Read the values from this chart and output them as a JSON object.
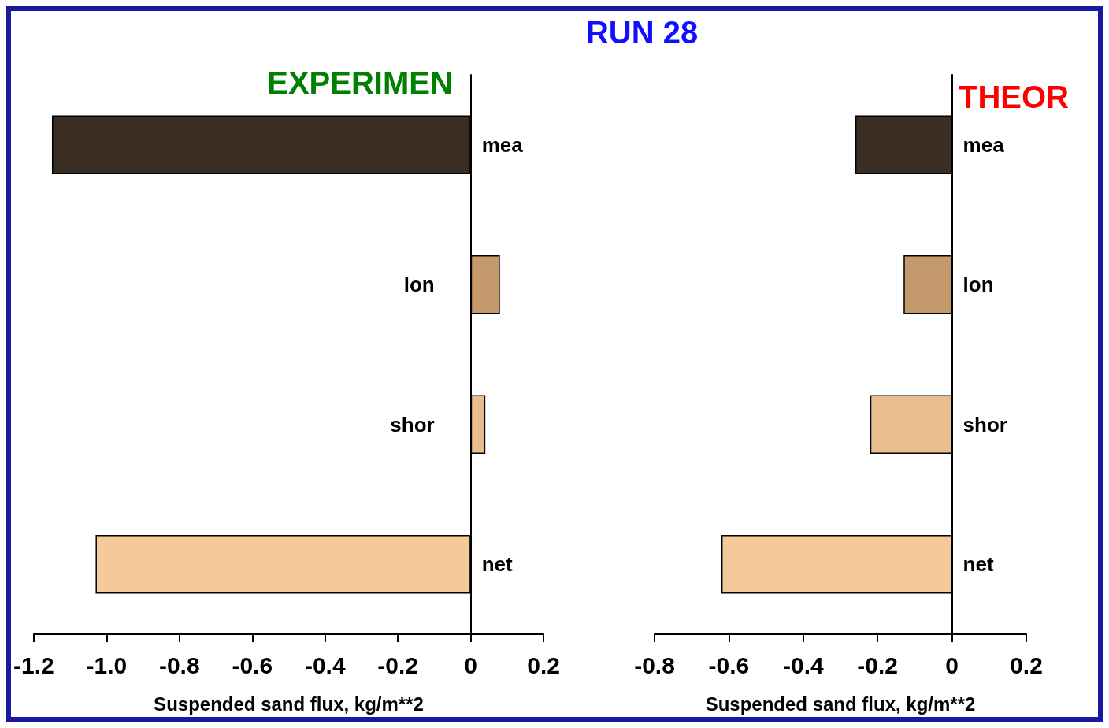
{
  "chart_data": [
    {
      "type": "bar",
      "title": "EXPERIMEN",
      "orientation": "horizontal",
      "categories": [
        "mea",
        "lon",
        "shor",
        "net"
      ],
      "values": [
        -1.15,
        0.08,
        0.04,
        -1.03
      ],
      "colors": [
        "#3a2e22",
        "#c49a6c",
        "#e8be8e",
        "#f5c99a"
      ],
      "xlim": [
        -1.2,
        0.2
      ],
      "xticks": [
        -1.2,
        {
          "value": -1.0,
          "label": "-1.0"
        },
        -0.8,
        -0.6,
        -0.4,
        -0.2,
        0,
        0.2
      ],
      "xlabel": "Suspended sand flux, kg/m**2",
      "tick_labels": "x"
    },
    {
      "type": "bar",
      "title": "THEOR",
      "annotations": [
        "RUN 28"
      ],
      "orientation": "horizontal",
      "categories": [
        "mea",
        "lon",
        "shor",
        "net"
      ],
      "values": [
        -0.26,
        -0.13,
        -0.22,
        -0.62
      ],
      "colors": [
        "#3a2e22",
        "#c49a6c",
        "#e8be8e",
        "#f5c99a"
      ],
      "xlim": [
        -0.8,
        0.2
      ],
      "xticks": [
        -0.8,
        -0.6,
        -0.4,
        -0.2,
        0,
        0.2
      ],
      "xlabel": "Suspended sand flux, kg/m**2",
      "tick_labels": "x"
    }
  ]
}
